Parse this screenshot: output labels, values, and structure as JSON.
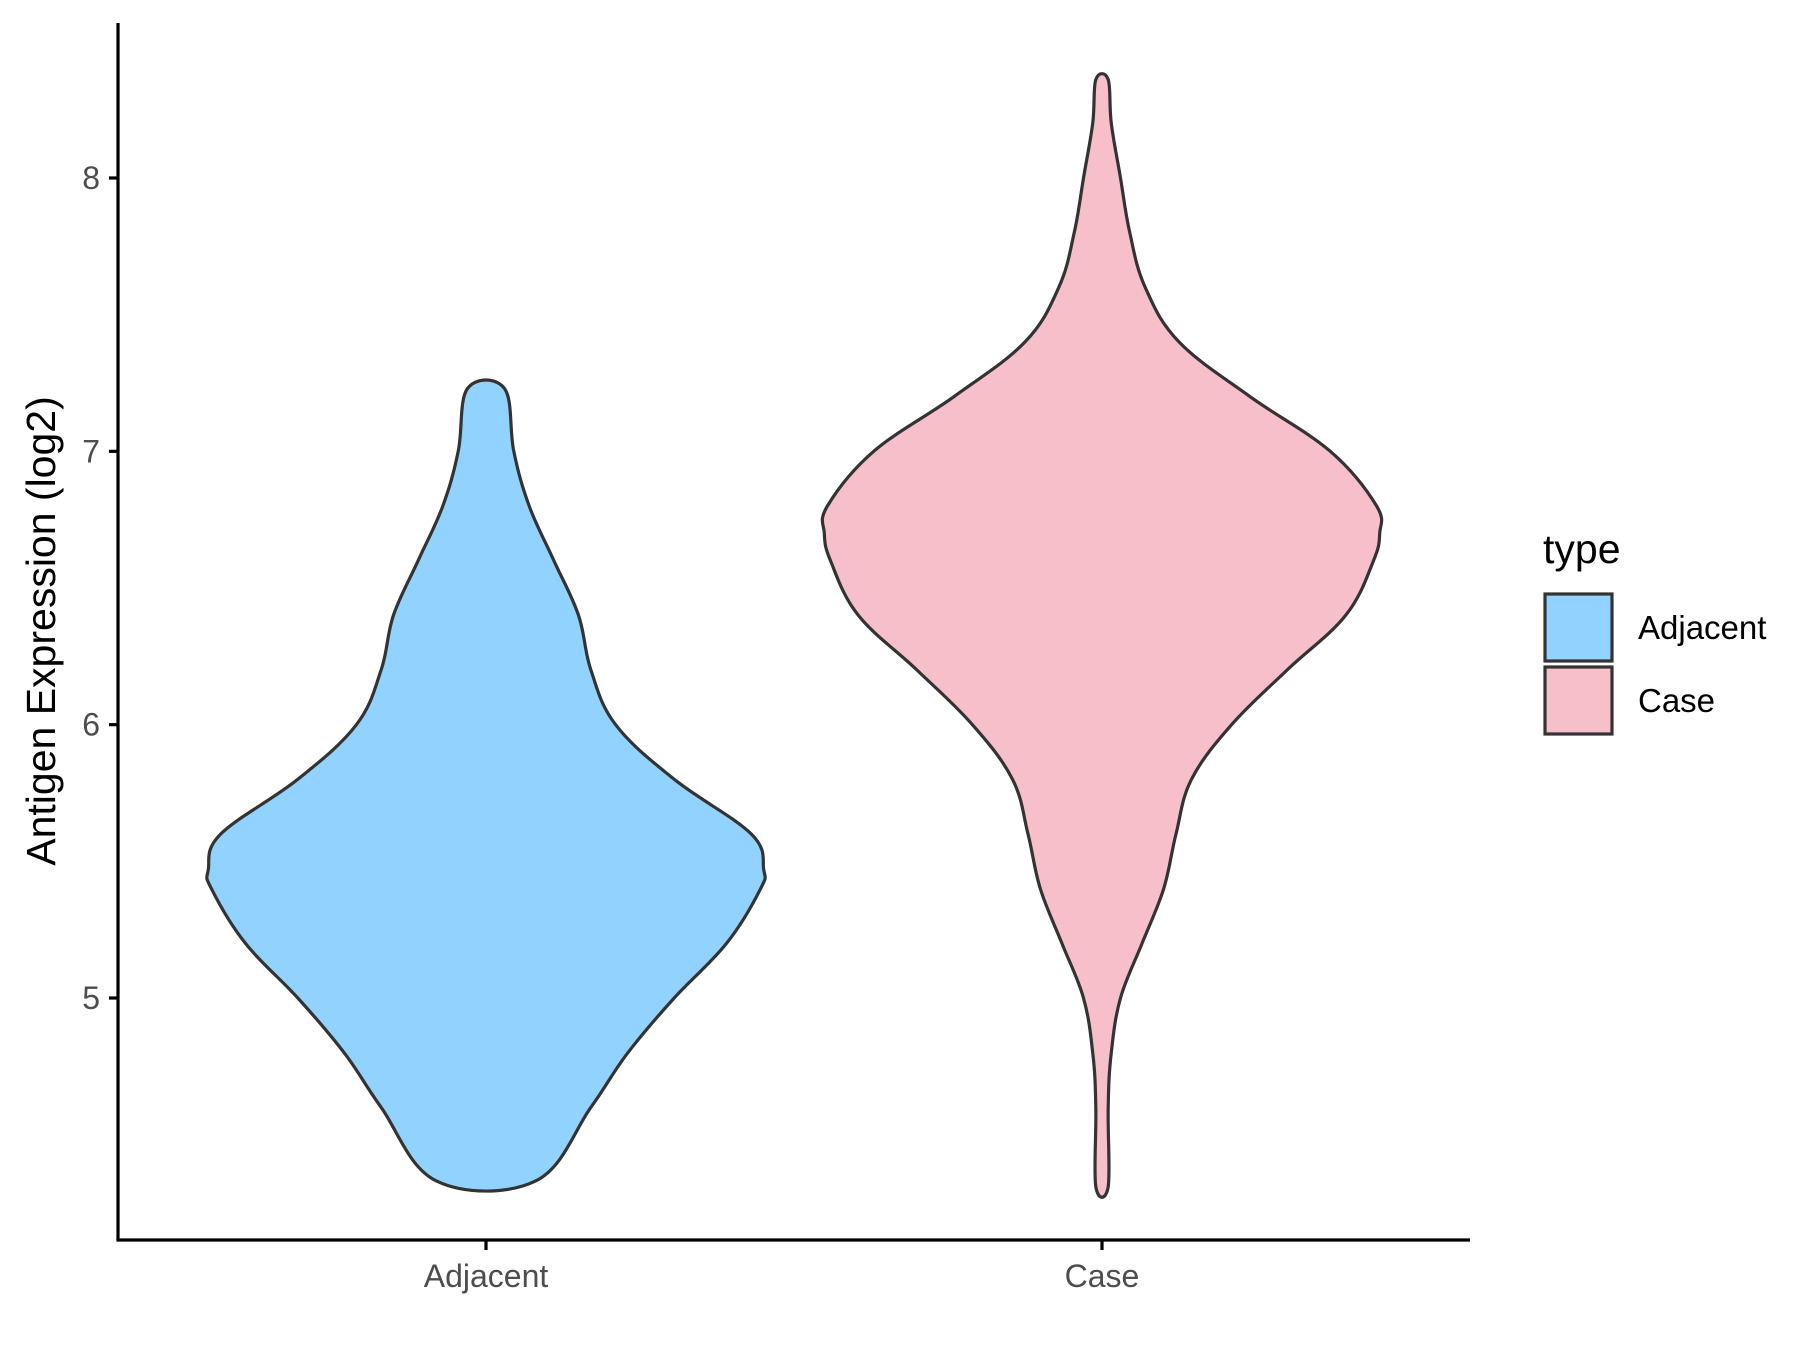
{
  "chart_data": {
    "type": "violin",
    "title": "",
    "xlabel": "",
    "ylabel": "Antigen Expression (log2)",
    "categories": [
      "Adjacent",
      "Case"
    ],
    "yticks": [
      5,
      6,
      7,
      8
    ],
    "ylim": [
      4.22,
      8.58
    ],
    "grid": false,
    "legend": {
      "title": "type",
      "position": "right",
      "entries": [
        {
          "label": "Adjacent",
          "color": "#92d2fe"
        },
        {
          "label": "Case",
          "color": "#f7bfca"
        }
      ]
    },
    "series": [
      {
        "category": "Adjacent",
        "color": "#92d2fe",
        "min": 4.33,
        "max": 7.23,
        "density_profile": [
          {
            "y": 4.33,
            "halfwidth": 0.16
          },
          {
            "y": 4.6,
            "halfwidth": 0.34
          },
          {
            "y": 4.8,
            "halfwidth": 0.46
          },
          {
            "y": 5.0,
            "halfwidth": 0.61
          },
          {
            "y": 5.2,
            "halfwidth": 0.78
          },
          {
            "y": 5.4,
            "halfwidth": 0.89
          },
          {
            "y": 5.47,
            "halfwidth": 0.9
          },
          {
            "y": 5.6,
            "halfwidth": 0.86
          },
          {
            "y": 5.8,
            "halfwidth": 0.61
          },
          {
            "y": 6.0,
            "halfwidth": 0.42
          },
          {
            "y": 6.2,
            "halfwidth": 0.34
          },
          {
            "y": 6.4,
            "halfwidth": 0.3
          },
          {
            "y": 6.6,
            "halfwidth": 0.22
          },
          {
            "y": 6.8,
            "halfwidth": 0.14
          },
          {
            "y": 7.0,
            "halfwidth": 0.09
          },
          {
            "y": 7.23,
            "halfwidth": 0.06
          }
        ]
      },
      {
        "category": "Case",
        "color": "#f7bfca",
        "min": 4.31,
        "max": 8.36,
        "density_profile": [
          {
            "y": 4.31,
            "halfwidth": 0.02
          },
          {
            "y": 4.6,
            "halfwidth": 0.02
          },
          {
            "y": 4.8,
            "halfwidth": 0.03
          },
          {
            "y": 5.0,
            "halfwidth": 0.06
          },
          {
            "y": 5.2,
            "halfwidth": 0.13
          },
          {
            "y": 5.4,
            "halfwidth": 0.2
          },
          {
            "y": 5.6,
            "halfwidth": 0.24
          },
          {
            "y": 5.8,
            "halfwidth": 0.29
          },
          {
            "y": 6.0,
            "halfwidth": 0.42
          },
          {
            "y": 6.2,
            "halfwidth": 0.6
          },
          {
            "y": 6.4,
            "halfwidth": 0.79
          },
          {
            "y": 6.6,
            "halfwidth": 0.88
          },
          {
            "y": 6.7,
            "halfwidth": 0.9
          },
          {
            "y": 6.8,
            "halfwidth": 0.89
          },
          {
            "y": 7.0,
            "halfwidth": 0.74
          },
          {
            "y": 7.2,
            "halfwidth": 0.48
          },
          {
            "y": 7.4,
            "halfwidth": 0.25
          },
          {
            "y": 7.6,
            "halfwidth": 0.14
          },
          {
            "y": 7.8,
            "halfwidth": 0.09
          },
          {
            "y": 8.0,
            "halfwidth": 0.06
          },
          {
            "y": 8.2,
            "halfwidth": 0.03
          },
          {
            "y": 8.36,
            "halfwidth": 0.02
          }
        ]
      }
    ]
  }
}
